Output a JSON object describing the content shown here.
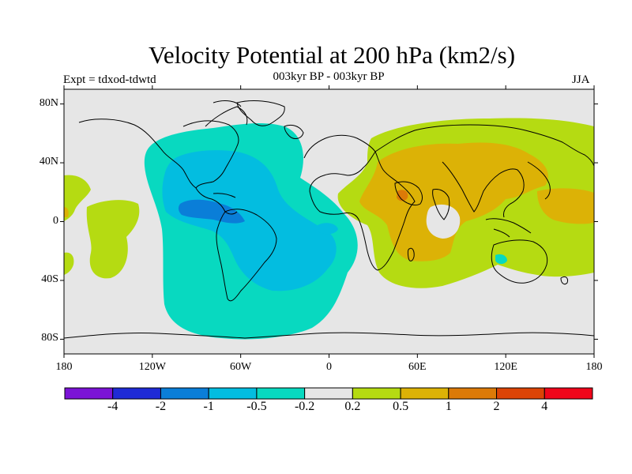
{
  "title": "Velocity Potential at 200 hPa (km2/s)",
  "left_label": "Expt = tdxod-tdwtd",
  "center_label": "003kyr BP - 003kyr BP",
  "right_label": "JJA",
  "map": {
    "projection": "cylindrical-equidistant",
    "lon_range": [
      -180,
      180
    ],
    "lat_range": [
      -90,
      90
    ],
    "x_tick_labels": [
      "180",
      "120W",
      "60W",
      "0",
      "60E",
      "120E",
      "180"
    ],
    "x_tick_values": [
      -180,
      -120,
      -60,
      0,
      60,
      120,
      180
    ],
    "y_tick_labels": [
      "80N",
      "40N",
      "0",
      "40S",
      "80S"
    ],
    "y_tick_values": [
      80,
      40,
      0,
      -40,
      -80
    ],
    "background_color": "#e6e6e6",
    "coastline_color": "#000000"
  },
  "colorbar": {
    "levels": [
      "-4",
      "-2",
      "-1",
      "-0.5",
      "-0.2",
      "0.2",
      "0.5",
      "1",
      "2",
      "4"
    ],
    "colors": [
      "#7b13d6",
      "#1f2bd6",
      "#0a7ed8",
      "#03bde0",
      "#08d9c0",
      "#e6e6e6",
      "#b5db12",
      "#dcb206",
      "#dc7a08",
      "#dc4406",
      "#f0051a"
    ]
  }
}
